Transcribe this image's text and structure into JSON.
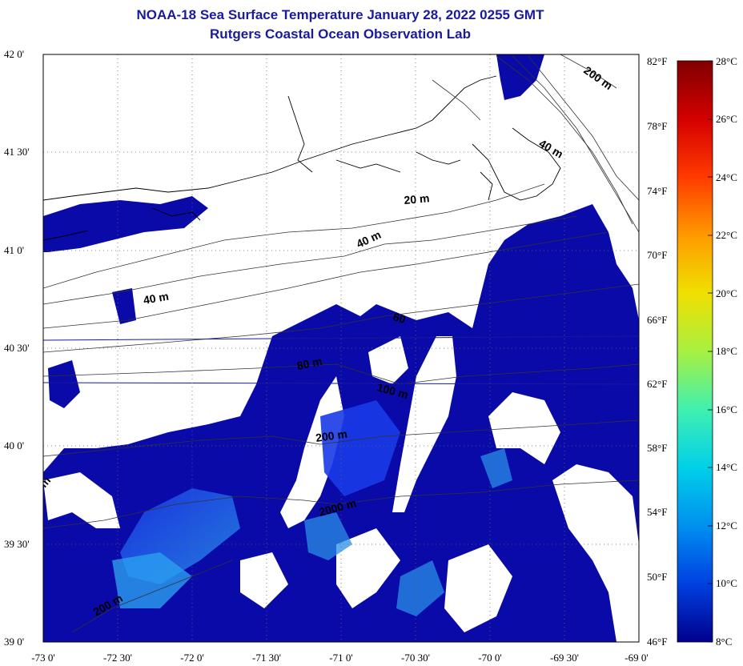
{
  "header": {
    "title": "NOAA-18 Sea Surface Temperature January 28, 2022 0255 GMT",
    "subtitle": "Rutgers Coastal Ocean Observation Lab"
  },
  "map": {
    "lat_labels": [
      "42 0'",
      "41 30'",
      "41 0'",
      "40 30'",
      "40 0'",
      "39 30'",
      "39 0'"
    ],
    "lon_labels": [
      "-73 0'",
      "-72 30'",
      "-72 0'",
      "-71 30'",
      "-71 0'",
      "-70 30'",
      "-70 0'",
      "-69 30'",
      "-69 0'"
    ],
    "fahrenheit_labels": [
      "82°F",
      "78°F",
      "74°F",
      "70°F",
      "66°F",
      "62°F",
      "58°F",
      "54°F",
      "50°F",
      "46°F"
    ],
    "contour_labels": [
      "200 m",
      "40 m",
      "20 m",
      "40 m",
      "40 m",
      "60",
      "80 m",
      "100 m",
      "200 m",
      "2000 m",
      "m",
      "200 m"
    ],
    "colors": {
      "land": "#ffffff",
      "ocean_deep": "#0a0aa8",
      "ocean_mid": "#1a2ee0",
      "ocean_warm": "#2a8fe8",
      "title": "#1a1a9c",
      "isobath": "#1a1a9c"
    },
    "icons": [
      "coastline",
      "isobath"
    ]
  },
  "colorbar": {
    "labels": [
      "28°C",
      "26°C",
      "24°C",
      "22°C",
      "20°C",
      "18°C",
      "16°C",
      "14°C",
      "12°C",
      "10°C",
      "8°C"
    ],
    "stops": [
      "#7f0000",
      "#d40000",
      "#ff3a00",
      "#ff9a00",
      "#f0e000",
      "#a8f040",
      "#40f0b0",
      "#00d0e8",
      "#0090f0",
      "#0040e0",
      "#00008c"
    ]
  }
}
